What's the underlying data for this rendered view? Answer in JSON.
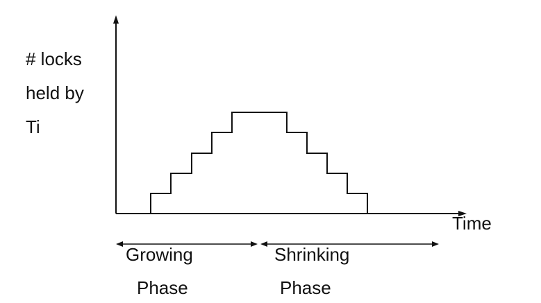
{
  "y_axis_label": {
    "line1": "# locks",
    "line2": "held by",
    "line3": "Ti"
  },
  "x_axis_label": "Time",
  "phases": {
    "growing": {
      "word1": "Growing",
      "word2": "Phase"
    },
    "shrinking": {
      "word1": "Shrinking",
      "word2": "Phase"
    }
  },
  "lock_profile": {
    "description_levels": [
      0,
      1,
      2,
      3,
      4,
      5,
      5,
      4,
      3,
      2,
      1,
      0
    ],
    "max_locks": 5
  },
  "colors": {
    "stroke": "#111111",
    "background": "#ffffff"
  }
}
